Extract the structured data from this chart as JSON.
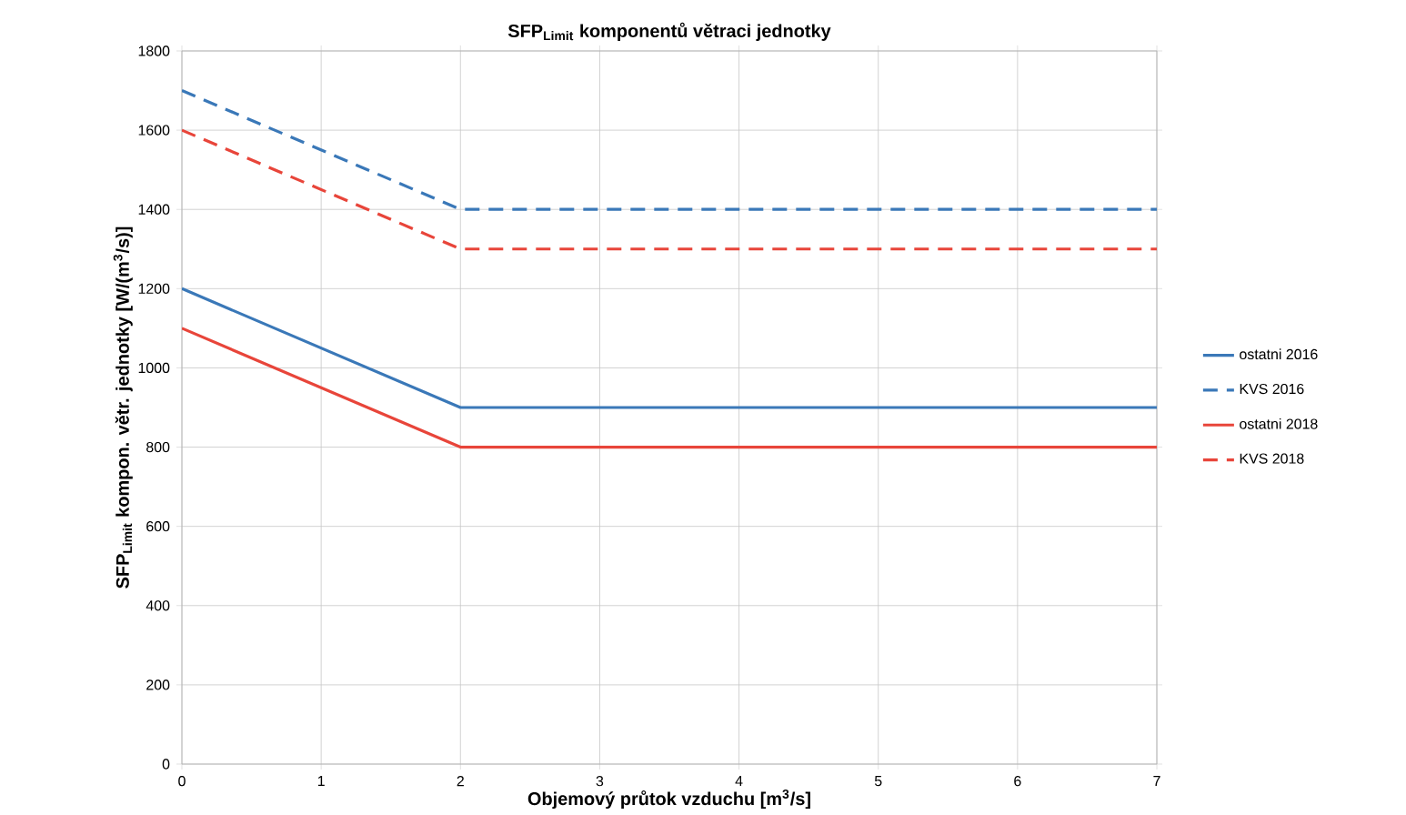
{
  "chart_data": {
    "type": "line",
    "title": "SFP$_{Limit}$ komponentů větraci jednotky",
    "xlabel": "Objemový průtok vzduchu [m$^{3}$/s]",
    "ylabel": "SFP$_{Limit}$ kompon. větr. jednotky [W/(m$^{3}$/s)]",
    "x": [
      0,
      2,
      7
    ],
    "series": [
      {
        "name": "ostatni 2016",
        "color": "#3a78b8",
        "values": [
          1200,
          900,
          900
        ],
        "line_style": "solid"
      },
      {
        "name": "KVS 2016",
        "color": "#3a78b8",
        "values": [
          1700,
          1400,
          1400
        ],
        "line_style": "dashed"
      },
      {
        "name": "ostatni 2018",
        "color": "#e8453a",
        "values": [
          1100,
          800,
          800
        ],
        "line_style": "solid"
      },
      {
        "name": "KVS 2018",
        "color": "#e8453a",
        "values": [
          1600,
          1300,
          1300
        ],
        "line_style": "dashed"
      }
    ],
    "xlim": [
      0,
      7
    ],
    "ylim": [
      0,
      1800
    ],
    "xticks": [
      0,
      1,
      2,
      3,
      4,
      5,
      6,
      7
    ],
    "yticks": [
      0,
      200,
      400,
      600,
      800,
      1000,
      1200,
      1400,
      1600,
      1800
    ],
    "grid": true,
    "legend": "right",
    "marker": "none"
  }
}
